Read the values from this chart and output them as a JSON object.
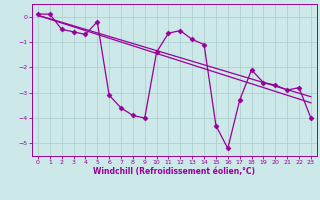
{
  "x": [
    0,
    1,
    2,
    3,
    4,
    5,
    6,
    7,
    8,
    9,
    10,
    11,
    12,
    13,
    14,
    15,
    16,
    17,
    18,
    19,
    20,
    21,
    22,
    23
  ],
  "y_main": [
    0.1,
    0.1,
    -0.5,
    -0.6,
    -0.7,
    -0.2,
    -3.1,
    -3.6,
    -3.9,
    -4.0,
    -1.4,
    -0.65,
    -0.55,
    -0.9,
    -1.1,
    -4.3,
    -5.2,
    -3.3,
    -2.1,
    -2.6,
    -2.7,
    -2.9,
    -2.8,
    -4.0
  ],
  "y_reg1": [
    0.05,
    -0.08,
    -0.22,
    -0.36,
    -0.5,
    -0.64,
    -0.78,
    -0.92,
    -1.06,
    -1.2,
    -1.34,
    -1.48,
    -1.62,
    -1.76,
    -1.9,
    -2.04,
    -2.18,
    -2.32,
    -2.46,
    -2.6,
    -2.74,
    -2.88,
    -3.02,
    -3.16
  ],
  "y_reg2": [
    0.05,
    -0.1,
    -0.25,
    -0.4,
    -0.55,
    -0.7,
    -0.85,
    -1.0,
    -1.15,
    -1.3,
    -1.45,
    -1.6,
    -1.75,
    -1.9,
    -2.05,
    -2.2,
    -2.35,
    -2.5,
    -2.65,
    -2.8,
    -2.95,
    -3.1,
    -3.25,
    -3.4
  ],
  "color": "#990099",
  "bg_color": "#cce8e8",
  "grid_color": "#aacccc",
  "xlabel": "Windchill (Refroidissement éolien,°C)",
  "xlim": [
    -0.5,
    23.5
  ],
  "ylim": [
    -5.5,
    0.5
  ],
  "yticks": [
    0,
    -1,
    -2,
    -3,
    -4,
    -5
  ],
  "xticks": [
    0,
    1,
    2,
    3,
    4,
    5,
    6,
    7,
    8,
    9,
    10,
    11,
    12,
    13,
    14,
    15,
    16,
    17,
    18,
    19,
    20,
    21,
    22,
    23
  ],
  "marker": "D",
  "markersize": 2.5,
  "linewidth": 0.9,
  "tick_fontsize": 4.5,
  "xlabel_fontsize": 5.5
}
